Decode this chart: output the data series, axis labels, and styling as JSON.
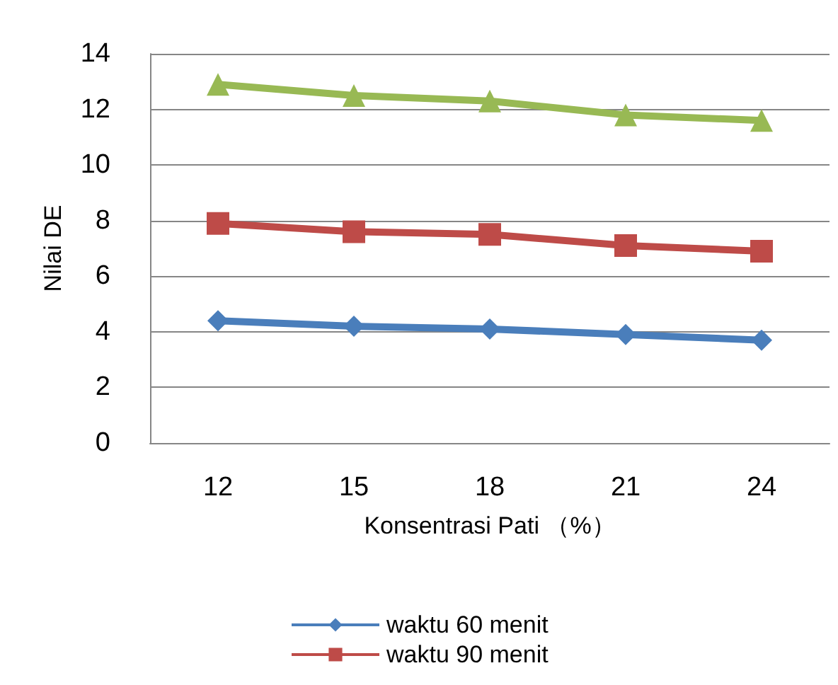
{
  "chart_data": {
    "type": "line",
    "xlabel": "Konsentrasi Pati （%）",
    "ylabel": "Nilai DE",
    "categories": [
      "12",
      "15",
      "18",
      "21",
      "24"
    ],
    "series": [
      {
        "name": "waktu 60 menit",
        "color": "#4a7ebb",
        "marker": "diamond",
        "values": [
          4.4,
          4.2,
          4.1,
          3.9,
          3.7
        ]
      },
      {
        "name": "waktu 90 menit",
        "color": "#be4b48",
        "marker": "square",
        "values": [
          7.9,
          7.6,
          7.5,
          7.1,
          6.9
        ]
      },
      {
        "color": "#98b954",
        "marker": "triangle",
        "values": [
          12.9,
          12.5,
          12.3,
          11.8,
          11.6
        ]
      }
    ],
    "ylim": [
      0,
      14
    ],
    "yticks": [
      0,
      2,
      4,
      6,
      8,
      10,
      12,
      14
    ],
    "grid": "y",
    "legend": "bottom",
    "line_style": "solid"
  }
}
